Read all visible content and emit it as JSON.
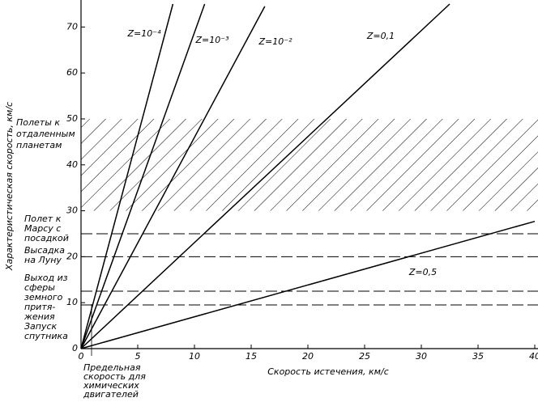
{
  "chart_data": {
    "type": "line",
    "xlabel": "Скорость истечения, км/с",
    "ylabel": "Характеристическая скорость, км/с",
    "xlim": [
      0,
      40
    ],
    "ylim": [
      0,
      75
    ],
    "xticks": [
      0,
      5,
      10,
      15,
      20,
      25,
      30,
      35,
      40
    ],
    "yticks": [
      0,
      10,
      20,
      30,
      40,
      50,
      60,
      70
    ],
    "series": [
      {
        "name": "Z=10⁻⁴",
        "color": "#000000",
        "x": [
          0,
          8.1
        ],
        "values": [
          0,
          75
        ]
      },
      {
        "name": "Z=10⁻³",
        "color": "#000000",
        "x": [
          0,
          10.9
        ],
        "values": [
          0,
          75
        ]
      },
      {
        "name": "Z=10⁻²",
        "color": "#000000",
        "x": [
          0,
          16.2
        ],
        "values": [
          0,
          74.5
        ]
      },
      {
        "name": "Z=0,1",
        "color": "#000000",
        "x": [
          0,
          32.5
        ],
        "values": [
          0,
          75
        ]
      },
      {
        "name": "Z=0,5",
        "color": "#000000",
        "x": [
          0,
          40
        ],
        "values": [
          0,
          27.7
        ]
      }
    ],
    "band": {
      "ymin": 30,
      "ymax": 50,
      "label": [
        "Полеты к",
        "отдаленным",
        "планетам"
      ]
    },
    "levels": [
      {
        "value": 25,
        "label": [
          "Полет к",
          "Марсу с",
          "посадкой"
        ]
      },
      {
        "value": 20,
        "label": [
          "Высадка",
          "на Луну"
        ]
      },
      {
        "value": 12.5,
        "label": [
          "Выход из",
          "сферы",
          "земного",
          "притя-",
          "жения"
        ]
      },
      {
        "value": 9.5,
        "label": [
          "Запуск",
          "спутника"
        ]
      }
    ],
    "chem_note": [
      "Предельная",
      "скорость для",
      "химических",
      "двигателей"
    ]
  }
}
